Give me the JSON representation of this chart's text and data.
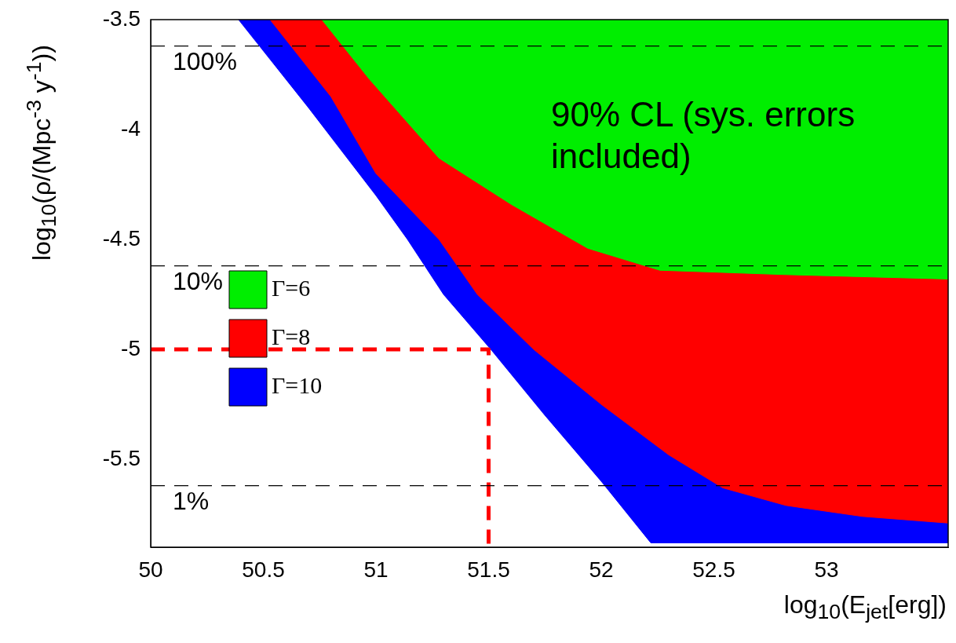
{
  "chart_data": {
    "type": "area",
    "xlabel": "log$_{10}$(E$_{jet}$[erg])",
    "ylabel": "log$_{10}$(ρ/(Mpc$^{-3}$ y$^{-1}$))",
    "xlim": [
      50,
      53.54
    ],
    "ylim": [
      -5.9,
      -3.5
    ],
    "xticks": [
      50,
      50.5,
      51,
      51.5,
      52,
      52.5,
      53
    ],
    "yticks": [
      -5.5,
      -5,
      -4.5,
      -4,
      -3.5
    ],
    "grid": false,
    "legend": "center left",
    "series": [
      {
        "name": "Γ=10",
        "color": "#0000ff",
        "x": [
          50.39,
          50.7,
          51.0,
          51.14,
          51.3,
          51.51,
          51.75,
          52.0,
          52.22,
          53.54
        ],
        "values": [
          -3.5,
          -3.9,
          -4.3,
          -4.5,
          -4.75,
          -5.0,
          -5.3,
          -5.6,
          -5.88,
          -5.88
        ]
      },
      {
        "name": "Γ=8",
        "color": "#ff0000",
        "x": [
          50.53,
          50.8,
          51.0,
          51.28,
          51.45,
          51.7,
          52.0,
          52.3,
          52.54,
          52.82,
          53.16,
          53.54
        ],
        "values": [
          -3.5,
          -3.85,
          -4.2,
          -4.5,
          -4.75,
          -5.0,
          -5.25,
          -5.48,
          -5.63,
          -5.71,
          -5.76,
          -5.79
        ]
      },
      {
        "name": "Γ=6",
        "color": "#00ee00",
        "x": [
          50.76,
          50.97,
          51.28,
          51.6,
          51.94,
          52.26,
          52.82,
          53.54
        ],
        "values": [
          -3.5,
          -3.77,
          -4.13,
          -4.34,
          -4.54,
          -4.64,
          -4.66,
          -4.68
        ]
      },
      {
        "type": "line",
        "color": "#ff0000",
        "line_style": "dashed",
        "x": [
          50,
          51.5,
          51.5
        ],
        "values": [
          -5,
          -5,
          -5.9
        ]
      }
    ],
    "ref_lines": [
      {
        "axis": "y",
        "value": -3.62,
        "color": "#000000",
        "line_style": "dashed"
      },
      {
        "axis": "y",
        "value": -4.62,
        "color": "#000000",
        "line_style": "dashed"
      },
      {
        "axis": "y",
        "value": -5.62,
        "color": "#000000",
        "line_style": "dashed"
      }
    ],
    "annotations": [
      "90% CL (sys. errors included)",
      {
        "text": "100%",
        "y": -3.62
      },
      {
        "text": "10%",
        "y": -4.62
      },
      {
        "text": "1%",
        "y": -5.62
      }
    ]
  }
}
